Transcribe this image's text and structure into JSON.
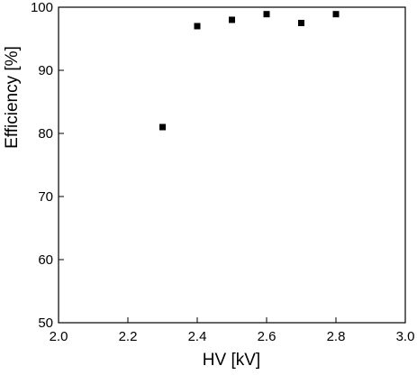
{
  "chart_data": {
    "type": "scatter",
    "title": "",
    "xlabel": "HV [kV]",
    "ylabel": "Efficiency [%]",
    "xlim": [
      2.0,
      3.0
    ],
    "ylim": [
      50,
      100
    ],
    "x_ticks": [
      2.0,
      2.2,
      2.4,
      2.6,
      2.8,
      3.0
    ],
    "x_tick_labels": [
      "2.0",
      "2.2",
      "2.4",
      "2.6",
      "2.8",
      "3.0"
    ],
    "y_ticks": [
      50,
      60,
      70,
      80,
      90,
      100
    ],
    "y_tick_labels": [
      "50",
      "60",
      "70",
      "80",
      "90",
      "100"
    ],
    "grid": false,
    "legend": "none",
    "marker": "square",
    "marker_color": "#000000",
    "series": [
      {
        "x": [
          2.3,
          2.4,
          2.5,
          2.6,
          2.7,
          2.8
        ],
        "y": [
          81.0,
          97.0,
          98.0,
          98.9,
          97.5,
          98.9
        ]
      }
    ]
  }
}
